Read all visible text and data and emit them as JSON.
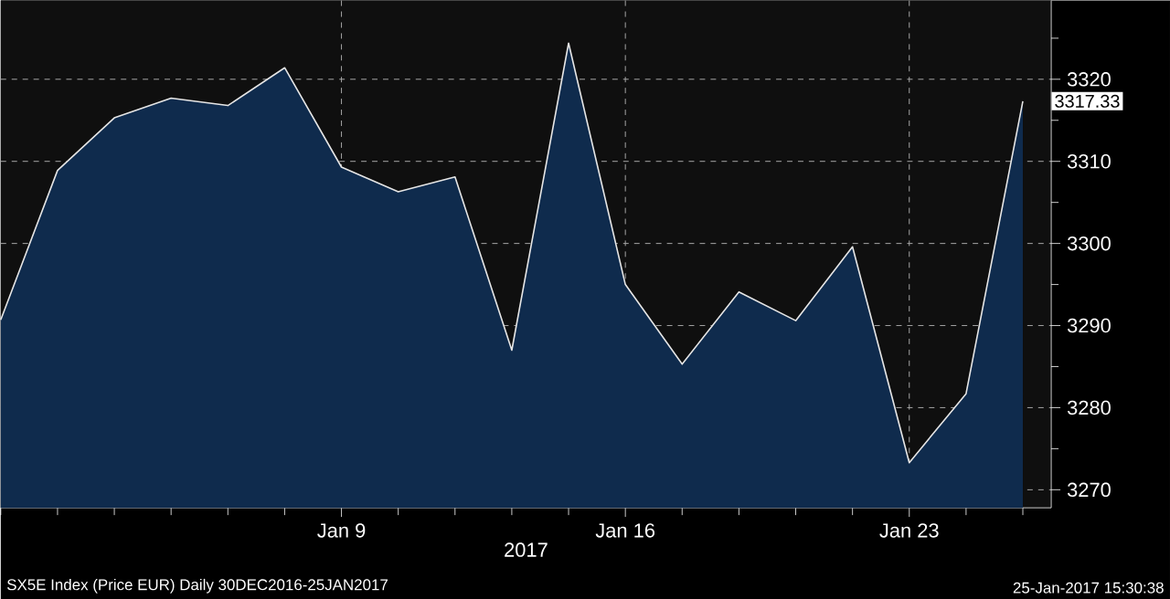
{
  "chart_data": {
    "type": "area",
    "xlabel": "2017",
    "categories": [
      null,
      null,
      null,
      null,
      null,
      null,
      "Jan 9",
      null,
      null,
      null,
      null,
      "Jan 16",
      null,
      null,
      null,
      null,
      "Jan 23",
      null,
      null
    ],
    "values": [
      3290.7,
      3308.9,
      3315.3,
      3317.7,
      3316.8,
      3321.4,
      3309.3,
      3306.3,
      3308.1,
      3287.0,
      3324.4,
      3295.0,
      3285.3,
      3294.1,
      3290.6,
      3299.6,
      3273.3,
      3281.7,
      3317.33
    ],
    "value_labels": [
      null,
      null,
      null,
      null,
      null,
      null,
      null,
      null,
      null,
      null,
      null,
      null,
      null,
      null,
      null,
      null,
      null,
      null,
      "3317.33"
    ],
    "color": "#0f2b4d",
    "ylim": [
      3267.8,
      3329.6
    ],
    "yticks": [
      3270,
      {
        "value": 3275,
        "label": null
      },
      3280,
      {
        "value": 3285,
        "label": null
      },
      3290,
      {
        "value": 3295,
        "label": null
      },
      3300,
      {
        "value": 3305,
        "label": null
      },
      3310,
      {
        "value": 3315,
        "label": null
      },
      3320,
      {
        "value": 3325,
        "label": null
      }
    ],
    "grid": true,
    "annotations": [
      "SX5E Index (Price EUR)  Daily 30DEC2016-25JAN2017",
      "25-Jan-2017 15:30:38"
    ]
  }
}
